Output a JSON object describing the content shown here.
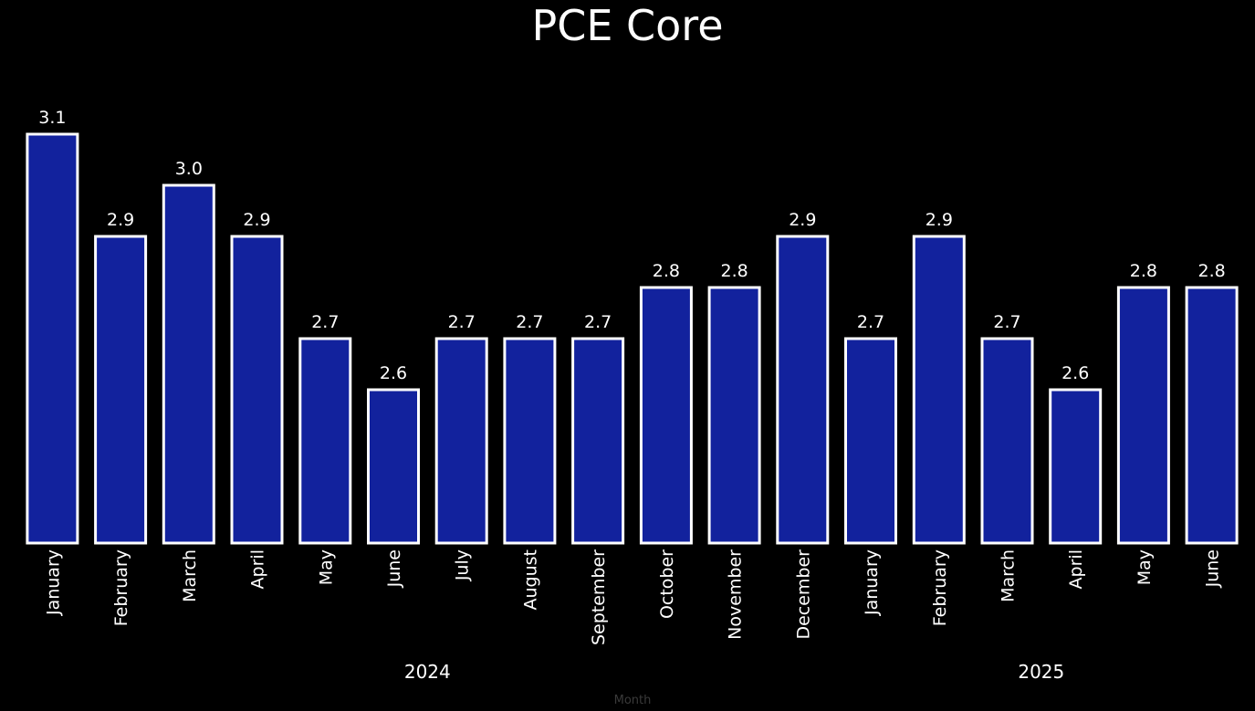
{
  "chart_data": {
    "type": "bar",
    "title": "PCE Core",
    "xlabel": "Month",
    "ylabel": "",
    "ylim": [
      2.3,
      3.1
    ],
    "grid": false,
    "legend": "none",
    "categories": [
      "January",
      "February",
      "March",
      "April",
      "May",
      "June",
      "July",
      "August",
      "September",
      "October",
      "November",
      "December",
      "January",
      "February",
      "March",
      "April",
      "May",
      "June"
    ],
    "groups": [
      {
        "label": "2024",
        "count": 12
      },
      {
        "label": "2025",
        "count": 6
      }
    ],
    "values": [
      3.1,
      2.9,
      3.0,
      2.9,
      2.7,
      2.6,
      2.7,
      2.7,
      2.7,
      2.8,
      2.8,
      2.9,
      2.7,
      2.9,
      2.7,
      2.6,
      2.8,
      2.8
    ],
    "data_labels": [
      "3.1",
      "2.9",
      "3.0",
      "2.9",
      "2.7",
      "2.6",
      "2.7",
      "2.7",
      "2.7",
      "2.8",
      "2.8",
      "2.9",
      "2.7",
      "2.9",
      "2.7",
      "2.6",
      "2.8",
      "2.8"
    ],
    "colors": {
      "bar_fill": "#12229d",
      "bar_stroke": "#ffffff",
      "background": "#000000",
      "text": "#ffffff",
      "axis_title": "#3a3a3a"
    }
  }
}
